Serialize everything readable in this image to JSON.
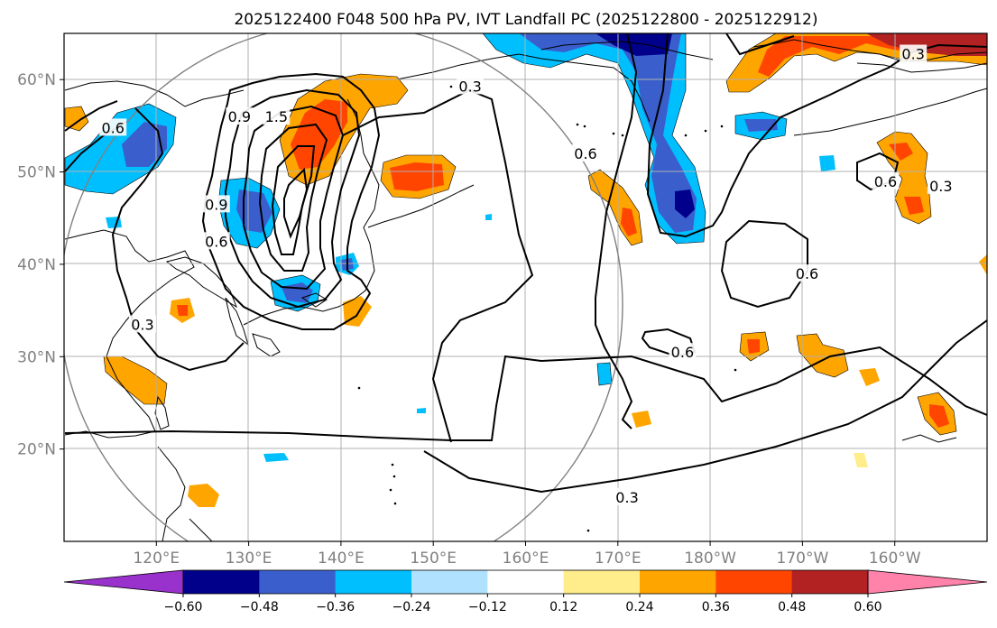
{
  "title": "2025122400 F048 500 hPa PV, IVT Landfall PC (2025122800 - 2025122912)",
  "map": {
    "lon_range": [
      110,
      210
    ],
    "lat_range": [
      10,
      65
    ],
    "lon_ticks": [
      {
        "value": 120,
        "label": "120°E"
      },
      {
        "value": 130,
        "label": "130°E"
      },
      {
        "value": 140,
        "label": "140°E"
      },
      {
        "value": 150,
        "label": "150°E"
      },
      {
        "value": 160,
        "label": "160°E"
      },
      {
        "value": 170,
        "label": "170°E"
      },
      {
        "value": 180,
        "label": "180°W"
      },
      {
        "value": 190,
        "label": "170°W"
      },
      {
        "value": 200,
        "label": "160°W"
      }
    ],
    "lat_ticks": [
      {
        "value": 20,
        "label": "20°N"
      },
      {
        "value": 30,
        "label": "30°N"
      },
      {
        "value": 40,
        "label": "40°N"
      },
      {
        "value": 50,
        "label": "50°N"
      },
      {
        "value": 60,
        "label": "60°N"
      }
    ],
    "grid": true,
    "range_circle": {
      "center_lon": 140,
      "center_lat": 37.5,
      "color": "#808080"
    }
  },
  "contour_labels": [
    {
      "text": "0.6",
      "lon": 115.3,
      "lat": 54.8
    },
    {
      "text": "0.9",
      "lon": 129.0,
      "lat": 56.0
    },
    {
      "text": "1.5",
      "lon": 133.0,
      "lat": 56.0
    },
    {
      "text": "0.3",
      "lon": 154.0,
      "lat": 59.3
    },
    {
      "text": "0.6",
      "lon": 166.5,
      "lat": 52.0
    },
    {
      "text": "0.9",
      "lon": 126.5,
      "lat": 46.5
    },
    {
      "text": "0.6",
      "lon": 126.5,
      "lat": 42.5
    },
    {
      "text": "0.3",
      "lon": 118.5,
      "lat": 33.5
    },
    {
      "text": "0.6",
      "lon": 190.5,
      "lat": 39.0
    },
    {
      "text": "0.6",
      "lon": 177.0,
      "lat": 30.5
    },
    {
      "text": "0.3",
      "lon": 171.0,
      "lat": 14.8
    },
    {
      "text": "0.6",
      "lon": 199.0,
      "lat": 49.0
    },
    {
      "text": "0.3",
      "lon": 205.0,
      "lat": 48.5
    },
    {
      "text": "0.3",
      "lon": 202.0,
      "lat": 62.8
    }
  ],
  "colorbar": {
    "colors": [
      "#9932cc",
      "#00008b",
      "#3a5fcd",
      "#00bfff",
      "#b0e2ff",
      "#ffffff",
      "#ffec8b",
      "#ffa500",
      "#ff4500",
      "#b22222",
      "#ff82ab"
    ],
    "tick_labels": [
      "−0.60",
      "−0.48",
      "−0.36",
      "−0.24",
      "−0.12",
      "0.12",
      "0.24",
      "0.36",
      "0.48",
      "0.60"
    ]
  }
}
